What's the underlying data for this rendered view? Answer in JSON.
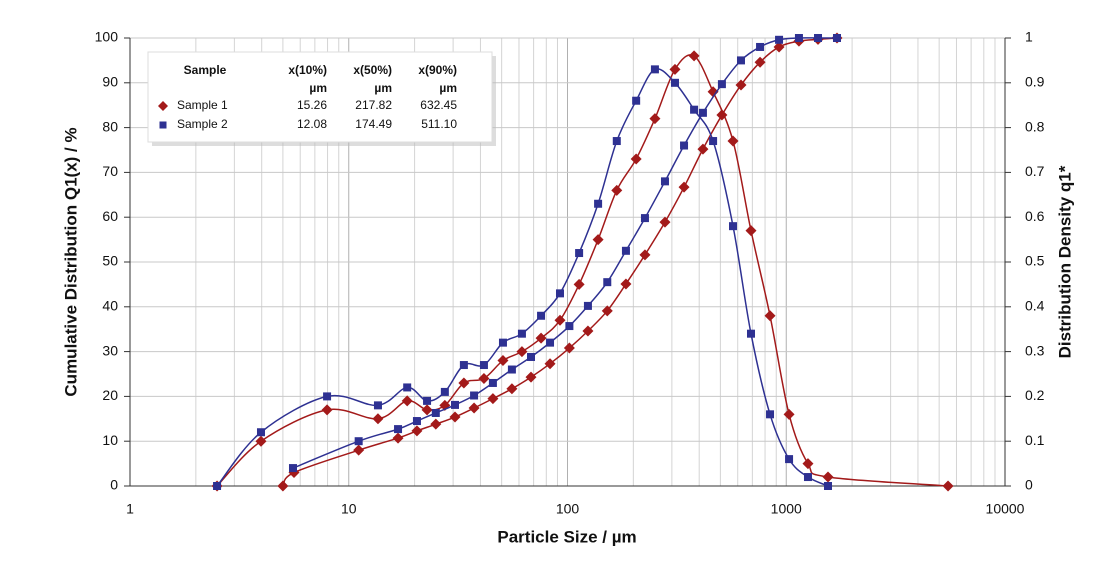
{
  "chart_data": {
    "type": "line",
    "xlabel": "Particle Size / µm",
    "ylabel": "Cumulative Distribution Q1(x) / %",
    "y2label": "Distribution Density q1*",
    "xscale": "log",
    "xlim": [
      1,
      10000
    ],
    "xticks": [
      1,
      10,
      100,
      1000,
      10000
    ],
    "ylim": [
      0,
      100
    ],
    "yticks": [
      0,
      10,
      20,
      30,
      40,
      50,
      60,
      70,
      80,
      90,
      100
    ],
    "y2lim": [
      0,
      1
    ],
    "y2ticks": [
      0,
      0.1,
      0.2,
      0.3,
      0.4,
      0.5,
      0.6,
      0.7,
      0.8,
      0.9,
      1
    ],
    "grid": true,
    "minor_grid": true,
    "legend": {
      "position": "upper left",
      "header": [
        "Sample",
        "x(10%)",
        "x(50%)",
        "x(90%)"
      ],
      "units": [
        "µm",
        "µm",
        "µm"
      ],
      "rows": [
        [
          "15.26",
          "217.82",
          "632.45"
        ],
        [
          "12.08",
          "174.49",
          "511.10"
        ]
      ]
    },
    "series": [
      {
        "name": "Sample 1",
        "color": "#a31a1a",
        "marker": "diamond",
        "cumulative": {
          "x": [
            5.0,
            5.62,
            11.1,
            16.8,
            20.5,
            25.0,
            30.6,
            37.4,
            45.6,
            55.7,
            68.1,
            83.2,
            102,
            124,
            152,
            185,
            226,
            279,
            341,
            416,
            508,
            621,
            759,
            927,
            1143,
            1397,
            1706
          ],
          "values": [
            0,
            3,
            8,
            10.7,
            12.3,
            13.8,
            15.4,
            17.4,
            19.5,
            21.7,
            24.3,
            27.3,
            30.8,
            34.6,
            39.1,
            45.1,
            51.6,
            58.9,
            66.7,
            75.2,
            82.8,
            89.5,
            94.6,
            98,
            99.3,
            99.7,
            100
          ]
        },
        "density": {
          "axis": "y2",
          "x": [
            2.5,
            3.97,
            7.96,
            13.6,
            18.5,
            22.8,
            27.5,
            33.6,
            41.5,
            50.7,
            61.9,
            75.7,
            92.4,
            113,
            138,
            168,
            206,
            251,
            310,
            379,
            463,
            571,
            690,
            843,
            1030,
            1257,
            1552,
            5490
          ],
          "values": [
            0,
            0.1,
            0.17,
            0.15,
            0.19,
            0.17,
            0.18,
            0.23,
            0.24,
            0.28,
            0.3,
            0.33,
            0.37,
            0.45,
            0.55,
            0.66,
            0.73,
            0.82,
            0.93,
            0.96,
            0.88,
            0.77,
            0.57,
            0.38,
            0.16,
            0.05,
            0.02,
            0
          ]
        }
      },
      {
        "name": "Sample 2",
        "color": "#2e3192",
        "marker": "square",
        "cumulative": {
          "x": [
            5.56,
            11.1,
            16.8,
            20.5,
            25.0,
            30.6,
            37.4,
            45.6,
            55.7,
            68.1,
            83.2,
            102,
            124,
            152,
            185,
            226,
            279,
            341,
            416,
            508,
            621,
            759,
            927,
            1143,
            1397,
            1706
          ],
          "values": [
            4,
            10,
            12.7,
            14.5,
            16.3,
            18.1,
            20.2,
            23,
            26,
            28.8,
            32,
            35.7,
            40.2,
            45.5,
            52.5,
            59.8,
            68,
            76,
            83.3,
            89.7,
            95,
            98,
            99.6,
            100,
            100,
            100
          ]
        },
        "density": {
          "axis": "y2",
          "x": [
            2.5,
            3.97,
            7.96,
            13.6,
            18.5,
            22.8,
            27.5,
            33.6,
            41.5,
            50.7,
            61.9,
            75.7,
            92.4,
            113,
            138,
            168,
            206,
            251,
            310,
            379,
            463,
            571,
            690,
            843,
            1030,
            1257,
            1552
          ],
          "values": [
            0,
            0.12,
            0.2,
            0.18,
            0.22,
            0.19,
            0.21,
            0.27,
            0.27,
            0.32,
            0.34,
            0.38,
            0.43,
            0.52,
            0.63,
            0.77,
            0.86,
            0.93,
            0.9,
            0.84,
            0.77,
            0.58,
            0.34,
            0.16,
            0.06,
            0.02,
            0
          ]
        }
      }
    ]
  }
}
